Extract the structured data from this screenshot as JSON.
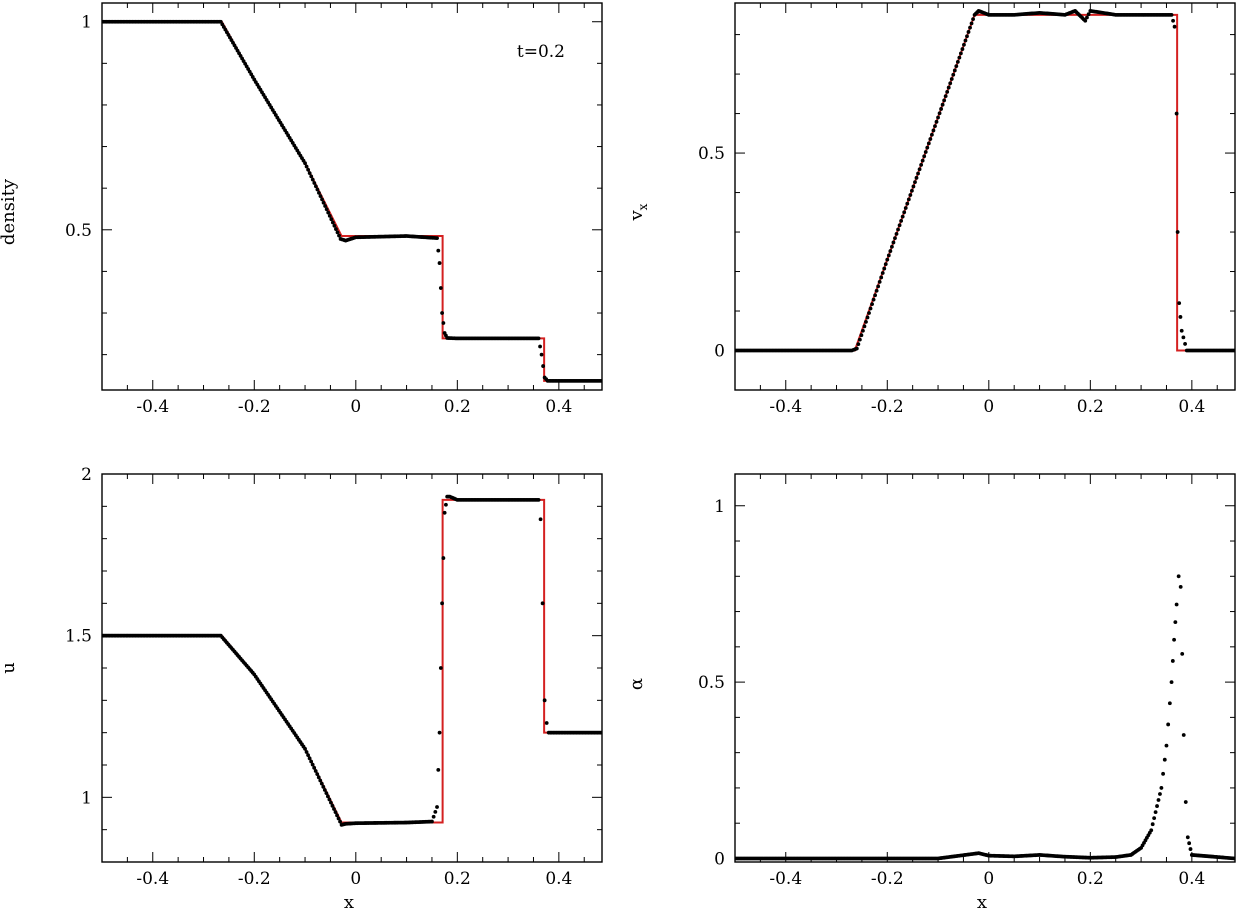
{
  "figure": {
    "annotation": "t=0.2"
  },
  "chart_data": [
    {
      "id": "density",
      "type": "line",
      "title": "",
      "xlabel": "",
      "ylabel": "density",
      "xlim": [
        -0.5,
        0.485
      ],
      "ylim": [
        0.115,
        1.045
      ],
      "xticks": [
        -0.4,
        -0.2,
        0,
        0.2,
        0.4
      ],
      "xtick_labels": [
        "-0.4",
        "-0.2",
        "0",
        "0.2",
        "0.4"
      ],
      "yticks": [
        0.5,
        1
      ],
      "ytick_labels": [
        "0.5",
        "1"
      ],
      "annotation": "t=0.2",
      "series": [
        {
          "style": "line",
          "color": "#d42020",
          "x": [
            -0.5,
            -0.264,
            -0.2,
            -0.1,
            -0.028,
            0.171,
            0.171,
            0.371,
            0.371,
            0.485
          ],
          "y": [
            1.0,
            1.0,
            0.861,
            0.66,
            0.485,
            0.485,
            0.239,
            0.239,
            0.137,
            0.137
          ]
        },
        {
          "style": "points",
          "color": "#000000",
          "x": [
            -0.5,
            -0.266,
            -0.2,
            -0.1,
            -0.03,
            -0.02,
            0.0,
            0.1,
            0.16,
            0.165,
            0.17,
            0.175,
            0.18,
            0.2,
            0.3,
            0.36,
            0.366,
            0.372,
            0.378,
            0.42,
            0.485
          ],
          "y": [
            1.0,
            1.0,
            0.861,
            0.66,
            0.478,
            0.474,
            0.482,
            0.485,
            0.48,
            0.42,
            0.3,
            0.252,
            0.24,
            0.239,
            0.239,
            0.239,
            0.2,
            0.145,
            0.137,
            0.137,
            0.137
          ]
        }
      ]
    },
    {
      "id": "vx",
      "type": "line",
      "title": "",
      "xlabel": "",
      "ylabel": "vx",
      "xlim": [
        -0.5,
        0.485
      ],
      "ylim": [
        -0.1,
        0.88
      ],
      "xticks": [
        -0.4,
        -0.2,
        0,
        0.2,
        0.4
      ],
      "xtick_labels": [
        "-0.4",
        "-0.2",
        "0",
        "0.2",
        "0.4"
      ],
      "yticks": [
        0,
        0.5
      ],
      "ytick_labels": [
        "0",
        "0.5"
      ],
      "series": [
        {
          "style": "line",
          "color": "#d42020",
          "x": [
            -0.5,
            -0.264,
            -0.028,
            0.371,
            0.371,
            0.485
          ],
          "y": [
            0.0,
            0.0,
            0.85,
            0.85,
            0.0,
            0.0
          ]
        },
        {
          "style": "points",
          "color": "#000000",
          "x": [
            -0.5,
            -0.27,
            -0.26,
            -0.2,
            -0.1,
            -0.028,
            -0.02,
            0.0,
            0.05,
            0.1,
            0.15,
            0.17,
            0.19,
            0.2,
            0.25,
            0.3,
            0.36,
            0.366,
            0.37,
            0.372,
            0.375,
            0.38,
            0.39,
            0.485
          ],
          "y": [
            0.0,
            0.0,
            0.005,
            0.23,
            0.59,
            0.85,
            0.86,
            0.85,
            0.85,
            0.855,
            0.85,
            0.86,
            0.835,
            0.86,
            0.85,
            0.85,
            0.85,
            0.82,
            0.6,
            0.3,
            0.12,
            0.05,
            0.0,
            0.0
          ]
        }
      ]
    },
    {
      "id": "u",
      "type": "line",
      "title": "",
      "xlabel": "x",
      "ylabel": "u",
      "xlim": [
        -0.5,
        0.485
      ],
      "ylim": [
        0.8,
        2.0
      ],
      "xticks": [
        -0.4,
        -0.2,
        0,
        0.2,
        0.4
      ],
      "xtick_labels": [
        "-0.4",
        "-0.2",
        "0",
        "0.2",
        "0.4"
      ],
      "yticks": [
        1,
        1.5,
        2
      ],
      "ytick_labels": [
        "1",
        "1.5",
        "2"
      ],
      "series": [
        {
          "style": "line",
          "color": "#d42020",
          "x": [
            -0.5,
            -0.264,
            -0.2,
            -0.1,
            -0.028,
            0.171,
            0.171,
            0.371,
            0.371,
            0.485
          ],
          "y": [
            1.5,
            1.5,
            1.38,
            1.15,
            0.922,
            0.922,
            1.92,
            1.92,
            1.2,
            1.2
          ]
        },
        {
          "style": "points",
          "color": "#000000",
          "x": [
            -0.5,
            -0.266,
            -0.2,
            -0.1,
            -0.028,
            -0.02,
            0.0,
            0.1,
            0.15,
            0.16,
            0.165,
            0.17,
            0.175,
            0.18,
            0.185,
            0.2,
            0.3,
            0.36,
            0.364,
            0.368,
            0.372,
            0.376,
            0.38,
            0.42,
            0.485
          ],
          "y": [
            1.5,
            1.5,
            1.38,
            1.15,
            0.915,
            0.918,
            0.92,
            0.922,
            0.925,
            0.97,
            1.2,
            1.6,
            1.88,
            1.93,
            1.93,
            1.92,
            1.92,
            1.92,
            1.86,
            1.6,
            1.3,
            1.23,
            1.2,
            1.2,
            1.2
          ]
        }
      ]
    },
    {
      "id": "alpha",
      "type": "scatter",
      "title": "",
      "xlabel": "x",
      "ylabel": "α",
      "xlim": [
        -0.5,
        0.485
      ],
      "ylim": [
        -0.01,
        1.09
      ],
      "xticks": [
        -0.4,
        -0.2,
        0,
        0.2,
        0.4
      ],
      "xtick_labels": [
        "-0.4",
        "-0.2",
        "0",
        "0.2",
        "0.4"
      ],
      "yticks": [
        0,
        0.5,
        1
      ],
      "ytick_labels": [
        "0",
        "0.5",
        "1"
      ],
      "series": [
        {
          "style": "points",
          "color": "#000000",
          "x": [
            -0.5,
            -0.3,
            -0.1,
            -0.02,
            0.0,
            0.05,
            0.1,
            0.15,
            0.2,
            0.25,
            0.28,
            0.3,
            0.32,
            0.34,
            0.35,
            0.36,
            0.365,
            0.37,
            0.374,
            0.378,
            0.381,
            0.384,
            0.388,
            0.392,
            0.4,
            0.485
          ],
          "y": [
            0.0,
            0.0,
            0.0,
            0.015,
            0.008,
            0.006,
            0.01,
            0.005,
            0.002,
            0.004,
            0.01,
            0.03,
            0.08,
            0.2,
            0.32,
            0.5,
            0.62,
            0.72,
            0.8,
            0.77,
            0.58,
            0.35,
            0.16,
            0.06,
            0.01,
            0.0
          ]
        }
      ]
    }
  ]
}
